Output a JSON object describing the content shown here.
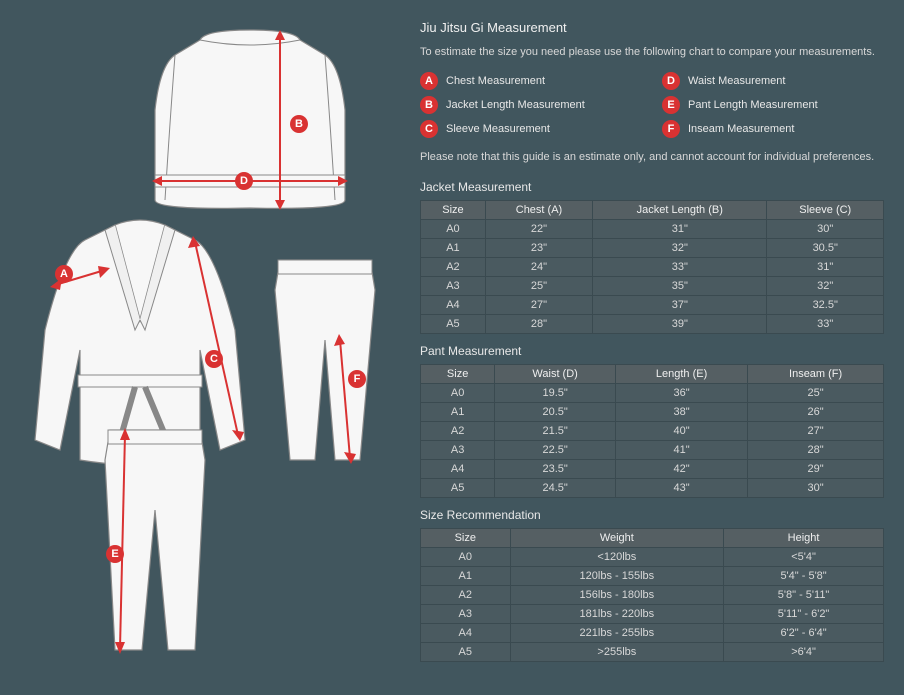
{
  "title": "Jiu Jitsu Gi Measurement",
  "intro": "To estimate the size you need please use the following chart to compare your measurements.",
  "legend": [
    {
      "key": "A",
      "label": "Chest Measurement"
    },
    {
      "key": "B",
      "label": "Jacket Length Measurement"
    },
    {
      "key": "C",
      "label": "Sleeve Measurement"
    },
    {
      "key": "D",
      "label": "Waist Measurement"
    },
    {
      "key": "E",
      "label": "Pant Length Measurement"
    },
    {
      "key": "F",
      "label": "Inseam Measurement"
    }
  ],
  "note": "Please note that this guide is an estimate only, and cannot account for individual preferences.",
  "colors": {
    "background": "#41565e",
    "accent": "#d93232",
    "table_header": "#555f63",
    "table_cell": "#4a5a60",
    "border": "#3a4a50",
    "gi_fill": "#f7f7f7",
    "gi_stroke": "#888888"
  },
  "jacket_table": {
    "title": "Jacket Measurement",
    "columns": [
      "Size",
      "Chest (A)",
      "Jacket Length (B)",
      "Sleeve (C)"
    ],
    "rows": [
      [
        "A0",
        "22\"",
        "31\"",
        "30\""
      ],
      [
        "A1",
        "23\"",
        "32\"",
        "30.5\""
      ],
      [
        "A2",
        "24\"",
        "33\"",
        "31\""
      ],
      [
        "A3",
        "25\"",
        "35\"",
        "32\""
      ],
      [
        "A4",
        "27\"",
        "37\"",
        "32.5\""
      ],
      [
        "A5",
        "28\"",
        "39\"",
        "33\""
      ]
    ]
  },
  "pant_table": {
    "title": "Pant Measurement",
    "columns": [
      "Size",
      "Waist (D)",
      "Length (E)",
      "Inseam (F)"
    ],
    "rows": [
      [
        "A0",
        "19.5\"",
        "36\"",
        "25\""
      ],
      [
        "A1",
        "20.5\"",
        "38\"",
        "26\""
      ],
      [
        "A2",
        "21.5\"",
        "40\"",
        "27\""
      ],
      [
        "A3",
        "22.5\"",
        "41\"",
        "28\""
      ],
      [
        "A4",
        "23.5\"",
        "42\"",
        "29\""
      ],
      [
        "A5",
        "24.5\"",
        "43\"",
        "30\""
      ]
    ]
  },
  "size_table": {
    "title": "Size Recommendation",
    "columns": [
      "Size",
      "Weight",
      "Height"
    ],
    "rows": [
      [
        "A0",
        "<120lbs",
        "<5'4\""
      ],
      [
        "A1",
        "120lbs - 155lbs",
        "5'4\" - 5'8\""
      ],
      [
        "A2",
        "156lbs - 180lbs",
        "5'8\" - 5'11\""
      ],
      [
        "A3",
        "181lbs - 220lbs",
        "5'11\" - 6'2\""
      ],
      [
        "A4",
        "221lbs - 255lbs",
        "6'2\" - 6'4\""
      ],
      [
        "A5",
        ">255lbs",
        ">6'4\""
      ]
    ]
  }
}
